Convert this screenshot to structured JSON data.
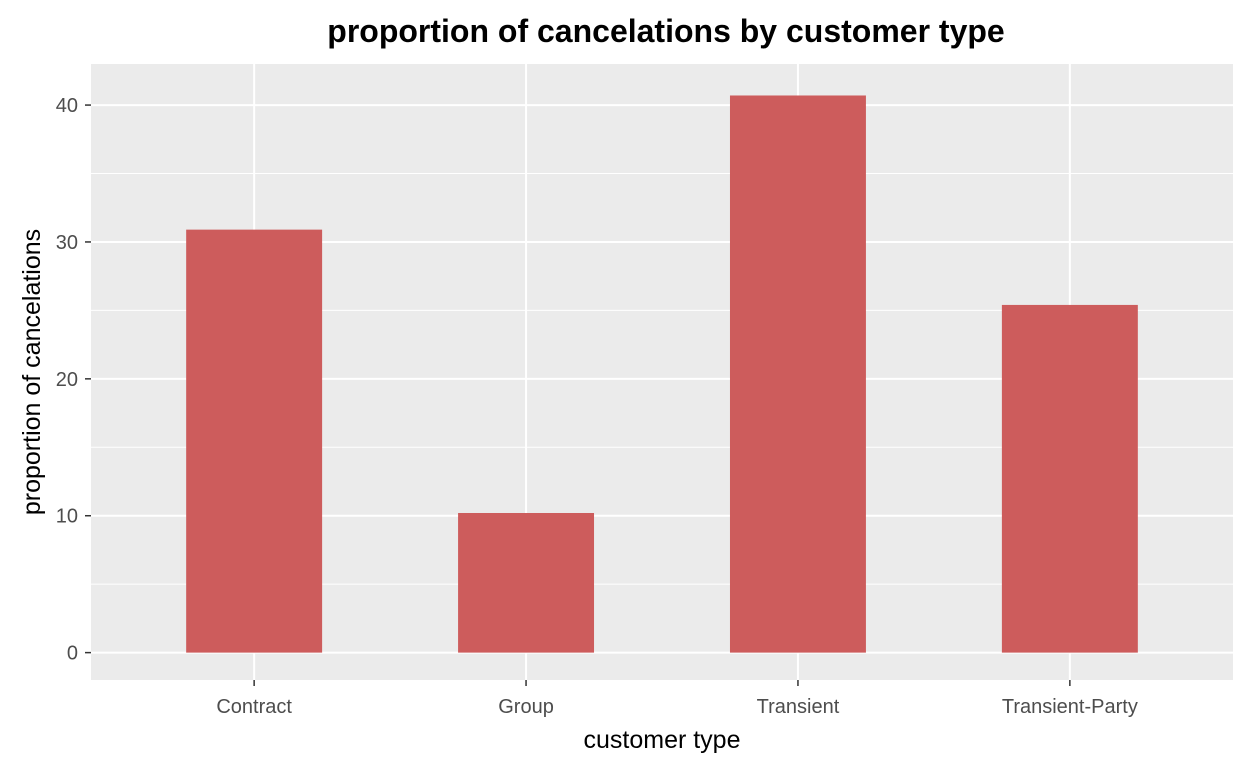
{
  "chart_data": {
    "type": "bar",
    "title": "proportion of cancelations by customer type",
    "xlabel": "customer type",
    "ylabel": "proportion of cancelations",
    "categories": [
      "Contract",
      "Group",
      "Transient",
      "Transient-Party"
    ],
    "values": [
      30.9,
      10.2,
      40.7,
      25.4
    ],
    "yticks": [
      0,
      10,
      20,
      30,
      40
    ],
    "ylim": [
      -2,
      43
    ],
    "grid": true,
    "legend": "none",
    "colors": {
      "bar": "#CD5C5C",
      "panel": "#EBEBEB",
      "grid": "#FFFFFF",
      "tick": "#333333",
      "tick_label": "#4D4D4D"
    }
  }
}
